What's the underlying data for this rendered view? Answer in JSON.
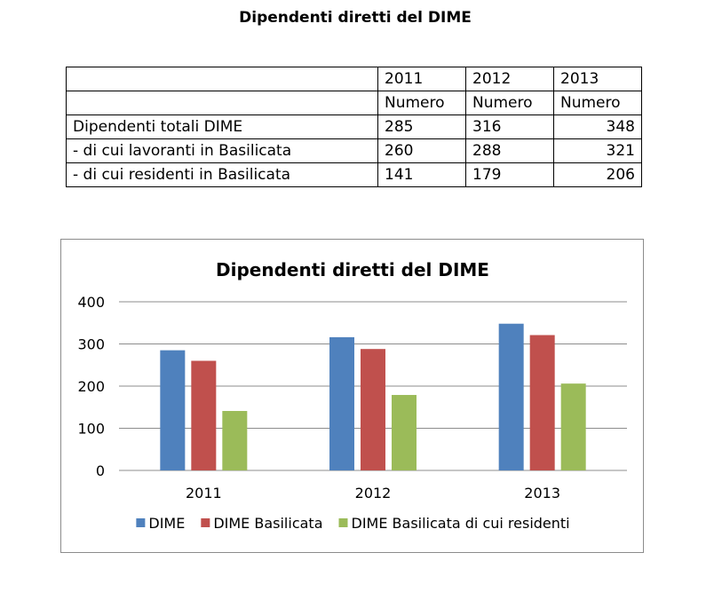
{
  "page_title": "Dipendenti diretti del DIME",
  "table": {
    "years": [
      "2011",
      "2012",
      "2013"
    ],
    "unit_label": "Numero",
    "rows": [
      {
        "label": "Dipendenti totali DIME",
        "values": [
          "285",
          "316",
          "348"
        ]
      },
      {
        "label": "- di cui lavoranti in Basilicata",
        "values": [
          "260",
          "288",
          "321"
        ]
      },
      {
        "label": "- di cui residenti in Basilicata",
        "values": [
          "141",
          "179",
          "206"
        ]
      }
    ]
  },
  "chart_data": {
    "type": "bar",
    "title": "Dipendenti diretti del DIME",
    "categories": [
      "2011",
      "2012",
      "2013"
    ],
    "series": [
      {
        "name": "DIME",
        "values": [
          285,
          316,
          348
        ],
        "color": "#4f81bd"
      },
      {
        "name": "DIME Basilicata",
        "values": [
          260,
          288,
          321
        ],
        "color": "#c0504d"
      },
      {
        "name": "DIME Basilicata di cui residenti",
        "values": [
          141,
          179,
          206
        ],
        "color": "#9bbb59"
      }
    ],
    "xlabel": "",
    "ylabel": "",
    "ylim": [
      0,
      400
    ],
    "yticks": [
      0,
      100,
      200,
      300,
      400
    ],
    "grid": true,
    "legend": "bottom"
  }
}
